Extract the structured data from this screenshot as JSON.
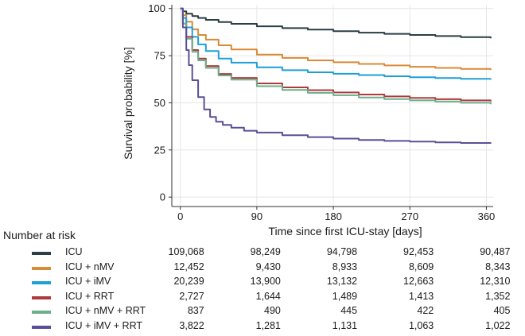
{
  "chart_data": {
    "type": "line",
    "title": "",
    "xlabel": "Time since first ICU-stay [days]",
    "ylabel": "Survival probability [%]",
    "xlim": [
      -10,
      368
    ],
    "ylim": [
      -5,
      102
    ],
    "xticks": [
      0,
      90,
      180,
      270,
      360
    ],
    "yticks": [
      0,
      25,
      50,
      75,
      100
    ],
    "grid": true,
    "series": [
      {
        "name": "ICU",
        "color": "#2b3d45",
        "x": [
          0,
          3,
          7,
          14,
          21,
          30,
          45,
          60,
          90,
          120,
          150,
          180,
          210,
          240,
          270,
          300,
          330,
          365
        ],
        "y": [
          100,
          98.5,
          97.3,
          96,
          95,
          94,
          92.8,
          91.9,
          90.6,
          89.6,
          88.8,
          88.0,
          87.2,
          86.6,
          86.0,
          85.4,
          84.8,
          84.2
        ]
      },
      {
        "name": "ICU + nMV",
        "color": "#d98a36",
        "x": [
          0,
          3,
          7,
          14,
          21,
          30,
          45,
          60,
          90,
          120,
          150,
          180,
          210,
          240,
          270,
          300,
          330,
          365
        ],
        "y": [
          100,
          96.5,
          93,
          89,
          86,
          83.5,
          80.5,
          78.3,
          75.6,
          73.8,
          72.5,
          71.5,
          70.6,
          69.8,
          69.1,
          68.5,
          68.0,
          67.4
        ]
      },
      {
        "name": "ICU + iMV",
        "color": "#1ea0d6",
        "x": [
          0,
          3,
          7,
          14,
          21,
          30,
          45,
          60,
          90,
          120,
          150,
          180,
          210,
          240,
          270,
          300,
          330,
          365
        ],
        "y": [
          100,
          95,
          90,
          85,
          81,
          77.5,
          73.5,
          71.3,
          68.8,
          67.3,
          66.2,
          65.4,
          64.7,
          64.1,
          63.6,
          63.1,
          62.7,
          62.3
        ]
      },
      {
        "name": "ICU + RRT",
        "color": "#b03a3a",
        "x": [
          0,
          3,
          7,
          14,
          21,
          30,
          45,
          60,
          90,
          120,
          150,
          180,
          210,
          240,
          270,
          300,
          330,
          365
        ],
        "y": [
          100,
          92,
          85,
          78,
          73.5,
          69.5,
          65.3,
          63.2,
          60.3,
          58.2,
          56.7,
          55.5,
          54.4,
          53.4,
          52.6,
          51.9,
          51.3,
          50.7
        ]
      },
      {
        "name": "ICU + nMV + RRT",
        "color": "#6bae8c",
        "x": [
          0,
          3,
          7,
          14,
          21,
          30,
          45,
          60,
          90,
          120,
          150,
          180,
          210,
          240,
          270,
          300,
          330,
          365
        ],
        "y": [
          100,
          92,
          84,
          77,
          72.5,
          68.5,
          64.5,
          62.3,
          58.8,
          56.8,
          55.3,
          54.0,
          52.8,
          52.0,
          51.3,
          50.7,
          50.0,
          49.2
        ]
      },
      {
        "name": "ICU + iMV + RRT",
        "color": "#5a4f96",
        "x": [
          0,
          3,
          7,
          10,
          14,
          21,
          28,
          35,
          42,
          50,
          60,
          75,
          90,
          120,
          150,
          180,
          210,
          240,
          270,
          300,
          330,
          365
        ],
        "y": [
          100,
          90,
          78,
          70,
          62,
          53,
          46.5,
          42.5,
          40,
          38.3,
          36.8,
          35.2,
          34.2,
          32.8,
          31.8,
          31.0,
          30.3,
          29.8,
          29.4,
          29.0,
          28.7,
          28.4
        ]
      }
    ]
  },
  "risk_table": {
    "title": "Number at risk",
    "rows": [
      {
        "label": "ICU",
        "color": "#2b3d45",
        "values": [
          "109,068",
          "98,249",
          "94,798",
          "92,453",
          "90,487"
        ]
      },
      {
        "label": "ICU + nMV",
        "color": "#d98a36",
        "values": [
          "12,452",
          "9,430",
          "8,933",
          "8,609",
          "8,343"
        ]
      },
      {
        "label": "ICU + iMV",
        "color": "#1ea0d6",
        "values": [
          "20,239",
          "13,900",
          "13,132",
          "12,663",
          "12,310"
        ]
      },
      {
        "label": "ICU + RRT",
        "color": "#b03a3a",
        "values": [
          "2,727",
          "1,644",
          "1,489",
          "1,413",
          "1,352"
        ]
      },
      {
        "label": "ICU + nMV + RRT",
        "color": "#6bae8c",
        "values": [
          "837",
          "490",
          "445",
          "422",
          "405"
        ]
      },
      {
        "label": "ICU + iMV + RRT",
        "color": "#5a4f96",
        "values": [
          "3,822",
          "1,281",
          "1,131",
          "1,063",
          "1,022"
        ]
      }
    ]
  }
}
